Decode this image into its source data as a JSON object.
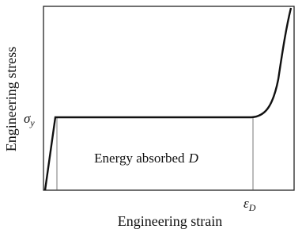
{
  "axes": {
    "x_label": "Engineering strain",
    "y_label": "Engineering stress"
  },
  "markers": {
    "yield_stress": {
      "symbol": "σ",
      "subscript": "y"
    },
    "densification_strain": {
      "symbol": "ε",
      "subscript": "D"
    }
  },
  "region": {
    "label": "Energy absorbed",
    "symbol": "D"
  }
}
